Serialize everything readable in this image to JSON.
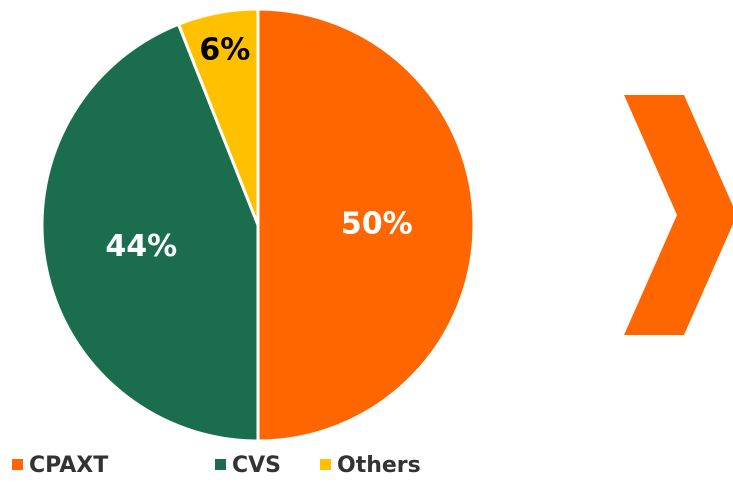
{
  "chart_data": {
    "type": "pie",
    "categories": [
      "CPAXT",
      "CVS",
      "Others"
    ],
    "values": [
      50,
      44,
      6
    ],
    "value_labels": [
      "50%",
      "44%",
      "6%"
    ],
    "colors": [
      "#ff6600",
      "#1a6e4e",
      "#ffc000"
    ],
    "legend": "bottom"
  }
}
